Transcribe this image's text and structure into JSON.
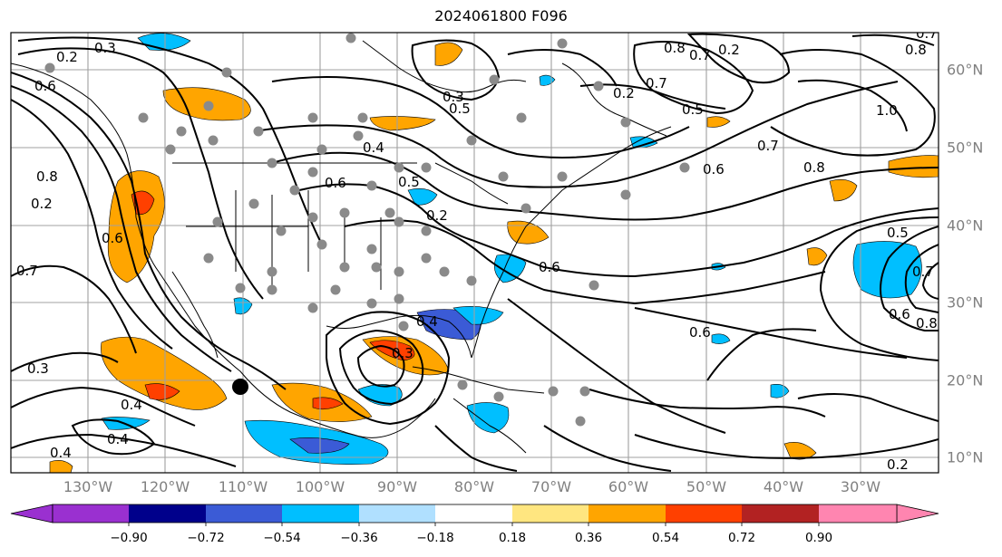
{
  "title": "2024061800 F096",
  "lon_labels": [
    "130°W",
    "120°W",
    "110°W",
    "100°W",
    "90°W",
    "80°W",
    "70°W",
    "60°W",
    "50°W",
    "40°W",
    "30°W"
  ],
  "lat_labels": [
    "60°N",
    "50°N",
    "40°N",
    "30°N",
    "20°N",
    "10°N"
  ],
  "colorbar": {
    "ticks": [
      "−0.90",
      "−0.72",
      "−0.54",
      "−0.36",
      "−0.18",
      "0.18",
      "0.36",
      "0.54",
      "0.72",
      "0.90"
    ],
    "colors": [
      "#9a30d0",
      "#00008b",
      "#3b5bd6",
      "#00bfff",
      "#b0e0ff",
      "#ffffff",
      "#ffe680",
      "#ffa500",
      "#ff4000",
      "#b22222",
      "#ff85b0"
    ]
  },
  "contour_labels": [
    "0.3",
    "0.2",
    "0.8",
    "0.3",
    "0.5",
    "0.6",
    "0.7",
    "0.8",
    "0.7",
    "0.5",
    "0.2",
    "0.4",
    "0.6",
    "0.5",
    "0.2",
    "0.6",
    "0.7",
    "0.6",
    "0.7",
    "0.8",
    "1.0",
    "0.8",
    "0.7",
    "0.5",
    "0.6",
    "0.7",
    "0.8",
    "0.6",
    "0.3",
    "0.4",
    "0.4",
    "0.4",
    "0.2",
    "0.3",
    "0.4",
    "0.2",
    "0.2",
    "0.6"
  ],
  "colors": {
    "lat_lon_labels": "#808080",
    "grid": "#a0a0a0",
    "stations": "#8a8a8a",
    "storm_marker": "#000000"
  }
}
